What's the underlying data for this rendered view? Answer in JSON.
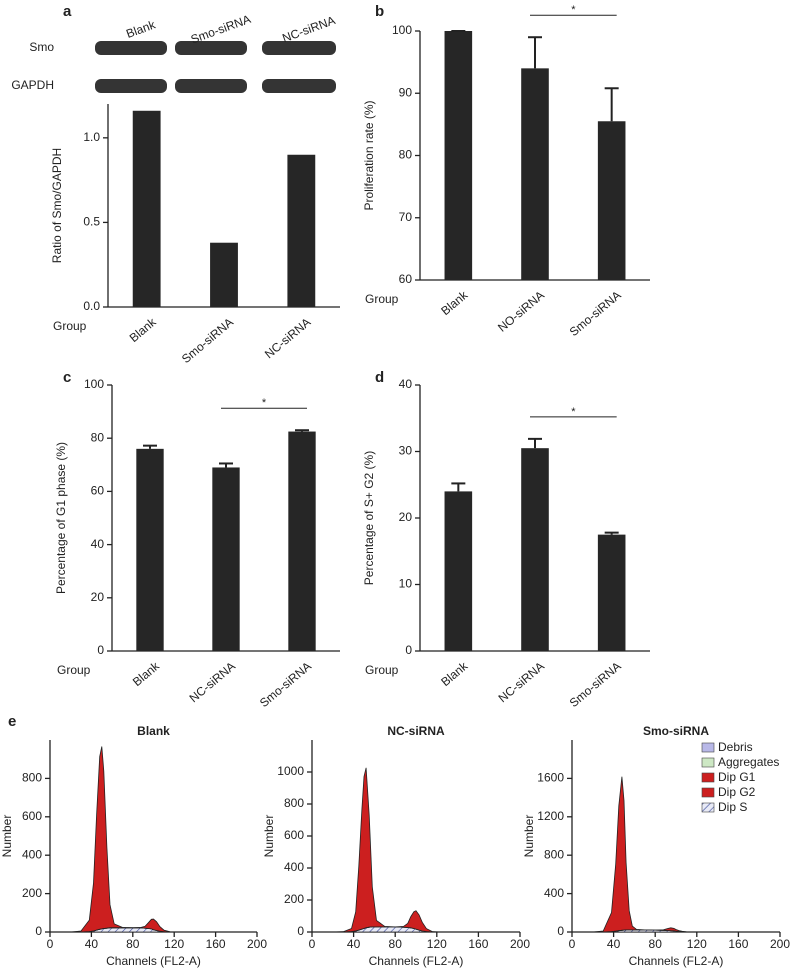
{
  "chart_data": [
    {
      "type": "bar",
      "panel": "a",
      "y_label": "Ratio of Smo/GAPDH",
      "x_label": "Group",
      "blot": {
        "rows": [
          "Smo",
          "GAPDH"
        ],
        "lanes": [
          "Blank",
          "Smo-siRNA",
          "NC-siRNA"
        ]
      },
      "categories": [
        "Blank",
        "Smo-siRNA",
        "NC-siRNA"
      ],
      "values": [
        1.16,
        0.38,
        0.9
      ],
      "color": "#262626",
      "ylim": [
        0,
        1.2
      ],
      "yticks": [
        {
          "value": 0,
          "label": "0.0"
        },
        {
          "value": 0.5,
          "label": "0.5"
        },
        {
          "value": 1,
          "label": "1.0"
        }
      ]
    },
    {
      "type": "bar",
      "panel": "b",
      "y_label": "Proliferation rate (%)",
      "x_label": "Group",
      "categories": [
        "Blank",
        "NO-siRNA",
        "Smo-siRNA"
      ],
      "values": [
        100,
        94,
        85.5
      ],
      "errors": [
        0,
        5,
        5.3
      ],
      "color": "#262626",
      "ylim": [
        60,
        100
      ],
      "yticks": [
        60,
        70,
        80,
        90,
        100
      ],
      "annotations": [
        {
          "text": "*",
          "between": [
            "NO-siRNA",
            "Smo-siRNA"
          ]
        }
      ]
    },
    {
      "type": "bar",
      "panel": "c",
      "y_label": "Percentage of G1 phase (%)",
      "x_label": "Group",
      "categories": [
        "Blank",
        "NC-siRNA",
        "Smo-siRNA"
      ],
      "values": [
        76,
        69,
        82.5
      ],
      "errors": [
        1.2,
        1.5,
        0.5
      ],
      "color": "#262626",
      "ylim": [
        0,
        100
      ],
      "yticks": [
        0,
        20,
        40,
        60,
        80,
        100
      ],
      "annotations": [
        {
          "text": "*",
          "between": [
            "NC-siRNA",
            "Smo-siRNA"
          ]
        }
      ]
    },
    {
      "type": "bar",
      "panel": "d",
      "y_label": "Percentage of  S+ G2 (%)",
      "x_label": "Group",
      "categories": [
        "Blank",
        "NC-siRNA",
        "Smo-siRNA"
      ],
      "values": [
        24,
        30.5,
        17.5
      ],
      "errors": [
        1.2,
        1.4,
        0.3
      ],
      "color": "#262626",
      "ylim": [
        0,
        40
      ],
      "yticks": [
        0,
        10,
        20,
        30,
        40
      ],
      "annotations": [
        {
          "text": "*",
          "between": [
            "NC-siRNA",
            "Smo-siRNA"
          ]
        }
      ]
    },
    {
      "type": "area",
      "panel": "e",
      "title": "Blank",
      "x_label": "Channels (FL2-A)",
      "y_label": "Number",
      "x": [
        20,
        30,
        38,
        42,
        45,
        48,
        50,
        52,
        55,
        58,
        62,
        70,
        80,
        88,
        92,
        95,
        98,
        100,
        103,
        106,
        110,
        116,
        124,
        140,
        160
      ],
      "series": [
        {
          "name": "Dip S",
          "color": "#3a4a9a",
          "values": [
            0,
            0,
            2,
            5,
            10,
            14,
            16,
            18,
            20,
            22,
            22,
            22,
            22,
            22,
            20,
            18,
            16,
            12,
            8,
            4,
            2,
            0,
            0,
            0,
            0
          ]
        },
        {
          "name": "Dip G1",
          "color": "#cc1f1f",
          "values": [
            0,
            5,
            60,
            250,
            600,
            900,
            950,
            820,
            420,
            120,
            20,
            2,
            0,
            0,
            0,
            0,
            0,
            0,
            0,
            0,
            0,
            0,
            0,
            0,
            0
          ]
        },
        {
          "name": "Dip G2",
          "color": "#cc1f1f",
          "values": [
            0,
            0,
            0,
            0,
            0,
            0,
            0,
            0,
            0,
            0,
            0,
            0,
            0,
            2,
            10,
            30,
            50,
            55,
            45,
            25,
            8,
            1,
            0,
            0,
            0
          ]
        }
      ],
      "xlim": [
        0,
        200
      ],
      "xticks": [
        0,
        40,
        80,
        120,
        160,
        200
      ],
      "ylim": [
        0,
        1000
      ],
      "yticks": [
        0,
        200,
        400,
        600,
        800
      ]
    },
    {
      "type": "area",
      "title": "NC-siRNA",
      "x_label": "Channels (FL2-A)",
      "y_label": "Number",
      "x": [
        20,
        30,
        38,
        42,
        45,
        48,
        50,
        52,
        55,
        58,
        62,
        70,
        80,
        88,
        92,
        95,
        98,
        100,
        103,
        106,
        110,
        116,
        124,
        140,
        160
      ],
      "series": [
        {
          "name": "Dip S",
          "color": "#3a4a9a",
          "values": [
            0,
            0,
            2,
            6,
            12,
            18,
            22,
            26,
            30,
            32,
            32,
            32,
            32,
            30,
            28,
            26,
            22,
            18,
            12,
            6,
            3,
            0,
            0,
            0,
            0
          ]
        },
        {
          "name": "Dip G1",
          "color": "#cc1f1f",
          "values": [
            0,
            2,
            20,
            120,
            400,
            750,
            950,
            1000,
            700,
            250,
            40,
            3,
            0,
            0,
            0,
            0,
            0,
            0,
            0,
            0,
            0,
            0,
            0,
            0,
            0
          ]
        },
        {
          "name": "Dip G2",
          "color": "#cc1f1f",
          "values": [
            0,
            0,
            0,
            0,
            0,
            0,
            0,
            0,
            0,
            0,
            0,
            0,
            0,
            5,
            25,
            70,
            105,
            115,
            95,
            55,
            18,
            2,
            0,
            0,
            0
          ]
        }
      ],
      "xlim": [
        0,
        200
      ],
      "xticks": [
        0,
        40,
        80,
        120,
        160,
        200
      ],
      "ylim": [
        0,
        1200
      ],
      "yticks": [
        0,
        200,
        400,
        600,
        800,
        1000
      ]
    },
    {
      "type": "area",
      "title": "Smo-siRNA",
      "x_label": "Channels (FL2-A)",
      "y_label": "Number",
      "x": [
        20,
        30,
        38,
        42,
        45,
        48,
        50,
        52,
        55,
        58,
        62,
        70,
        80,
        88,
        92,
        95,
        98,
        100,
        103,
        106,
        110,
        116,
        124,
        140,
        160
      ],
      "series": [
        {
          "name": "Dip S",
          "color": "#3a4a9a",
          "values": [
            0,
            0,
            3,
            8,
            14,
            18,
            20,
            22,
            22,
            22,
            22,
            22,
            20,
            18,
            16,
            14,
            12,
            8,
            5,
            2,
            0,
            0,
            0,
            0,
            0
          ]
        },
        {
          "name": "Dip G1",
          "color": "#cc1f1f",
          "values": [
            0,
            10,
            200,
            700,
            1300,
            1600,
            1350,
            700,
            200,
            40,
            5,
            0,
            0,
            0,
            0,
            0,
            0,
            0,
            0,
            0,
            0,
            0,
            0,
            0,
            0
          ]
        },
        {
          "name": "Dip G2",
          "color": "#cc1f1f",
          "values": [
            0,
            0,
            0,
            0,
            0,
            0,
            0,
            0,
            0,
            0,
            0,
            0,
            0,
            5,
            20,
            30,
            25,
            18,
            10,
            5,
            2,
            0,
            0,
            0,
            0
          ]
        }
      ],
      "xlim": [
        0,
        200
      ],
      "xticks": [
        0,
        40,
        80,
        120,
        160,
        200
      ],
      "ylim": [
        0,
        2000
      ],
      "yticks": [
        0,
        400,
        800,
        1200,
        1600
      ],
      "legend": [
        {
          "name": "Debris",
          "color": "#b8b8e8"
        },
        {
          "name": "Aggregates",
          "color": "#cde8c4"
        },
        {
          "name": "Dip G1",
          "color": "#cc1f1f"
        },
        {
          "name": "Dip G2",
          "color": "#cc1f1f"
        },
        {
          "name": "Dip S",
          "color": "#3a4a9a"
        }
      ]
    }
  ]
}
